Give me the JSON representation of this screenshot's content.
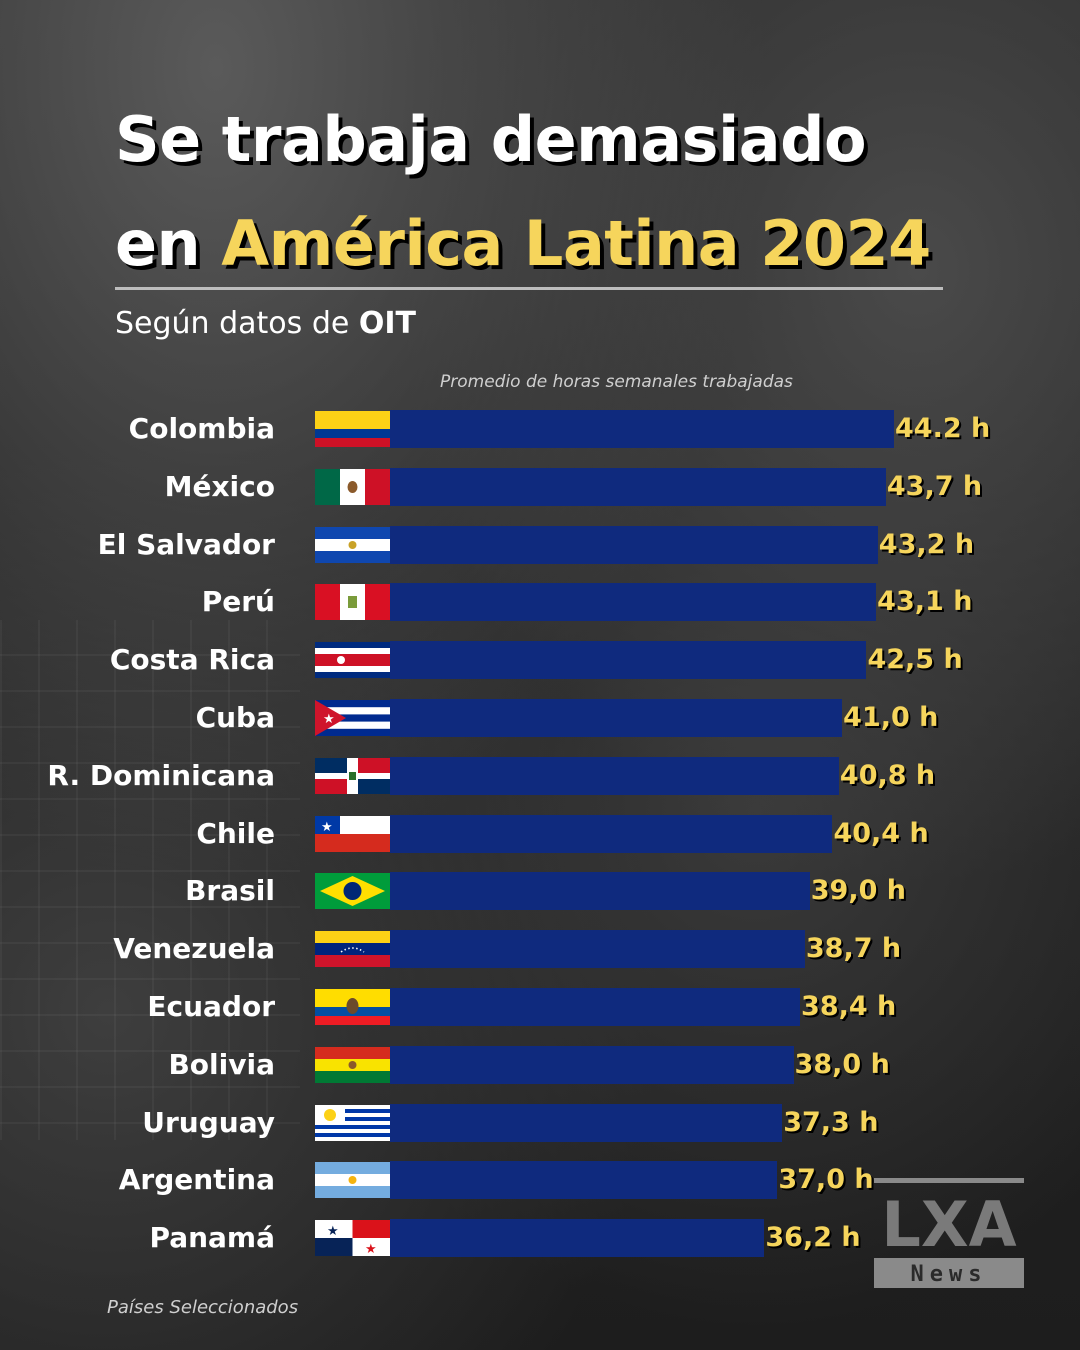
{
  "title": {
    "line1": "Se trabaja demasiado",
    "line2_prefix": "en",
    "line2_highlight": "América Latina 2024"
  },
  "subtitle": {
    "prefix": "Según datos de",
    "source": "OIT"
  },
  "footnote": "Países Seleccionados",
  "logo": {
    "mark": "LXA",
    "word": "News"
  },
  "colors": {
    "bar": "#0f2a7e",
    "highlight": "#f6d55c",
    "text": "#ffffff"
  },
  "chart_data": {
    "type": "bar",
    "orientation": "horizontal",
    "xlabel": "Promedio de horas semanales trabajadas",
    "categories": [
      "Colombia",
      "México",
      "El Salvador",
      "Perú",
      "Costa Rica",
      "Cuba",
      "R. Dominicana",
      "Chile",
      "Brasil",
      "Venezuela",
      "Ecuador",
      "Bolivia",
      "Uruguay",
      "Argentina",
      "Panamá"
    ],
    "values": [
      44.2,
      43.7,
      43.2,
      43.1,
      42.5,
      41.0,
      40.8,
      40.4,
      39.0,
      38.7,
      38.4,
      38.0,
      37.3,
      37.0,
      36.2
    ],
    "value_labels": [
      "44.2 h",
      "43,7 h",
      "43,2 h",
      "43,1 h",
      "42,5 h",
      "41,0 h",
      "40,8 h",
      "40,4 h",
      "39,0 h",
      "38,7 h",
      "38,4 h",
      "38,0 h",
      "37,3 h",
      "37,0 h",
      "36,2 h"
    ],
    "flag_icons": [
      "flag-colombia-icon",
      "flag-mexico-icon",
      "flag-el-salvador-icon",
      "flag-peru-icon",
      "flag-costa-rica-icon",
      "flag-cuba-icon",
      "flag-dominican-republic-icon",
      "flag-chile-icon",
      "flag-brazil-icon",
      "flag-venezuela-icon",
      "flag-ecuador-icon",
      "flag-bolivia-icon",
      "flag-uruguay-icon",
      "flag-argentina-icon",
      "flag-panama-icon"
    ]
  }
}
